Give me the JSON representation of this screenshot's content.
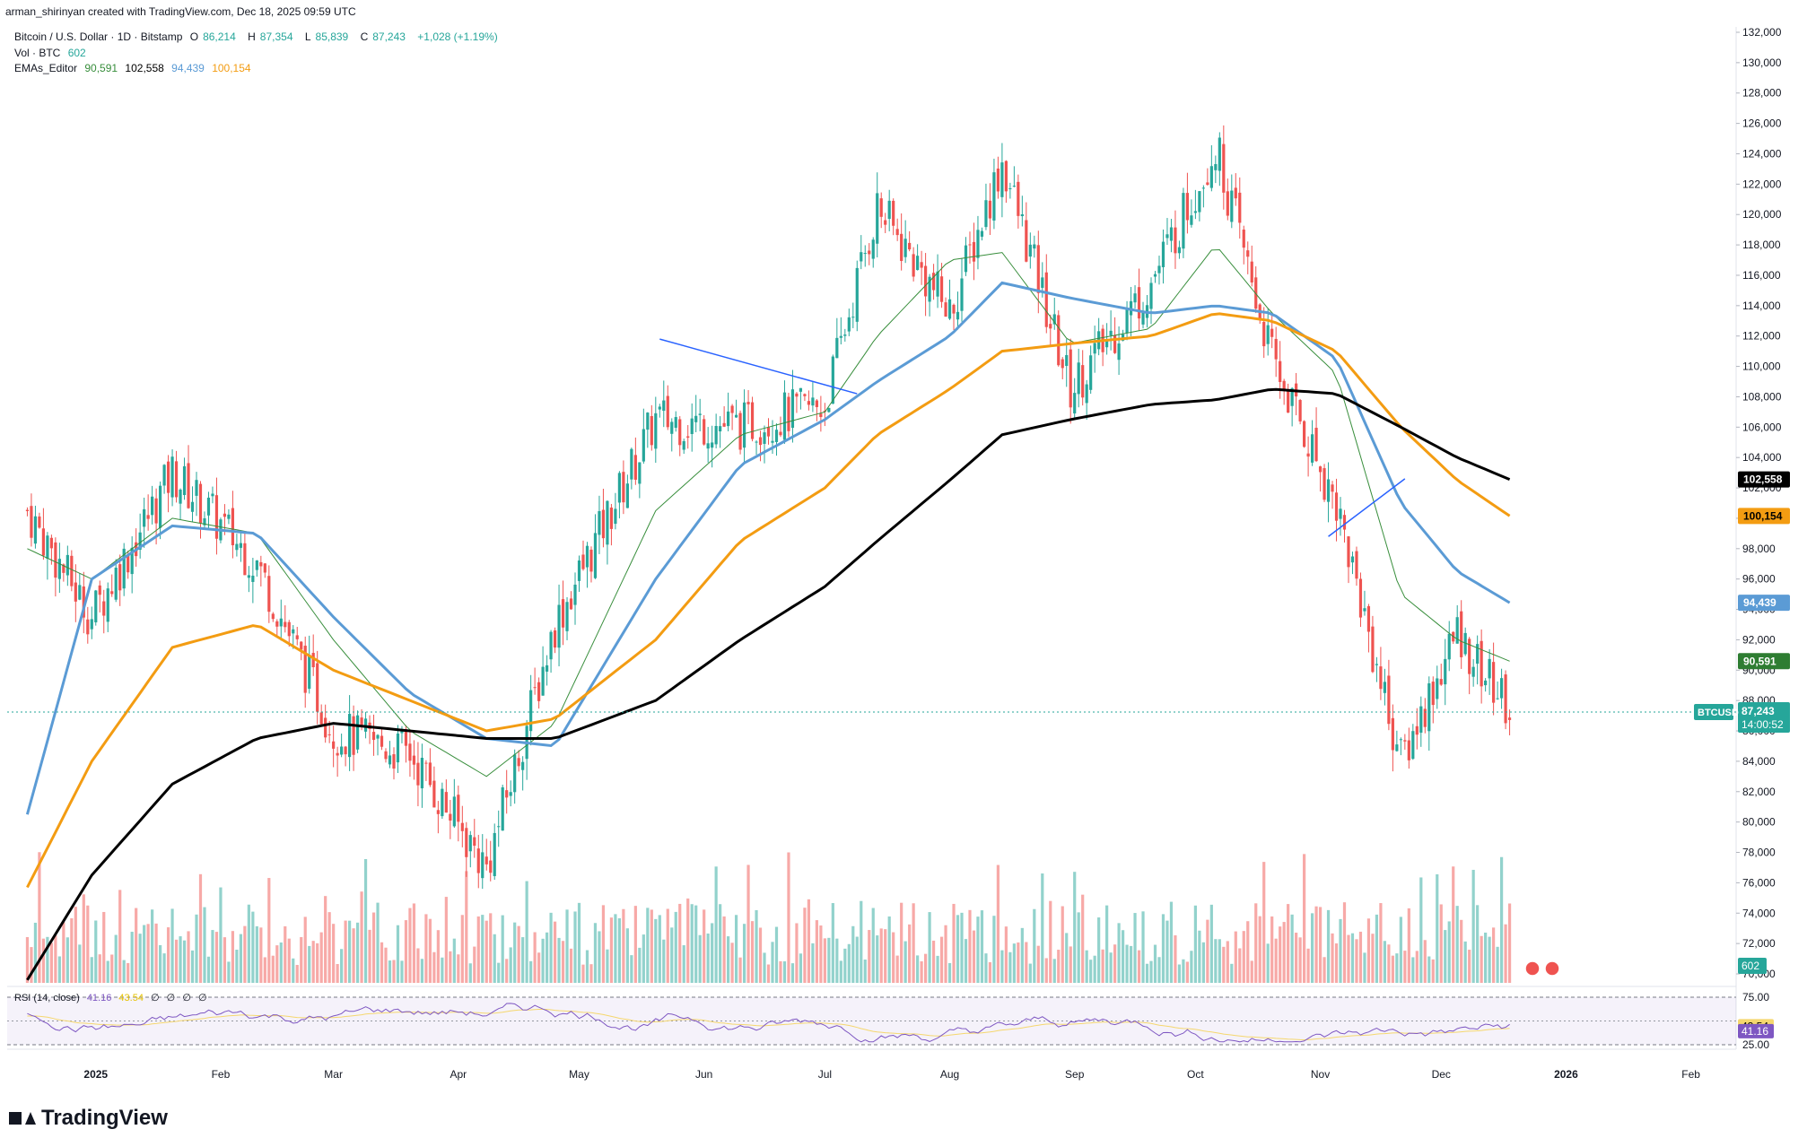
{
  "header": {
    "credit": "arman_shirinyan created with TradingView.com, Dec 18, 2025 09:59 UTC"
  },
  "legend": {
    "symbol": "Bitcoin / U.S. Dollar · 1D · Bitstamp",
    "open_label": "O",
    "open": "86,214",
    "high_label": "H",
    "high": "87,354",
    "low_label": "L",
    "low": "85,839",
    "close_label": "C",
    "close": "87,243",
    "change": "+1,028 (+1.19%)",
    "vol_label": "Vol · BTC",
    "vol": "602",
    "ema_label": "EMAs_Editor",
    "ema1": "90,591",
    "ema2": "102,558",
    "ema3": "94,439",
    "ema4": "100,154"
  },
  "rsi_legend": {
    "label": "RSI (14, close)",
    "value": "41.16",
    "ma": "43.54",
    "zeros": [
      "∅",
      "∅",
      "∅",
      "∅"
    ]
  },
  "price_badges": {
    "ema200": "102,558",
    "ema100": "100,154",
    "ema50": "94,439",
    "ema20": "90,591",
    "ticker": "BTCUSD",
    "last": "87,243",
    "countdown": "14:00:52",
    "volume": "602",
    "rsi_ma": "43.54",
    "rsi": "41.16"
  },
  "footer": {
    "brand": "TradingView"
  },
  "colors": {
    "up": "#26a69a",
    "down": "#ef5350",
    "ema20": "#388e3c",
    "ema50": "#5b9bd5",
    "ema100": "#f39c12",
    "ema200": "#000000",
    "rsi": "#7e57c2",
    "rsi_ma": "#f5d76e",
    "trendline": "#2962ff"
  },
  "chart_data": {
    "type": "line",
    "title": "Bitcoin / U.S. Dollar · 1D · Bitstamp",
    "xlabel": "",
    "ylabel": "",
    "ylim": [
      70000,
      132000
    ],
    "y_ticks": [
      "132,000",
      "130,000",
      "128,000",
      "126,000",
      "124,000",
      "122,000",
      "120,000",
      "118,000",
      "116,000",
      "114,000",
      "112,000",
      "110,000",
      "108,000",
      "106,000",
      "104,000",
      "102,000",
      "100,000",
      "98,000",
      "96,000",
      "94,000",
      "92,000",
      "90,000",
      "88,000",
      "86,000",
      "84,000",
      "82,000",
      "80,000",
      "78,000",
      "76,000",
      "74,000",
      "72,000",
      "70,000"
    ],
    "x_ticks": [
      "2025",
      "Feb",
      "Mar",
      "Apr",
      "May",
      "Jun",
      "Jul",
      "Aug",
      "Sep",
      "Oct",
      "Nov",
      "Dec",
      "2026",
      "Feb"
    ],
    "rsi_ticks": [
      "75.00",
      "25.00"
    ],
    "series": [
      {
        "name": "BTCUSD (approx. close)",
        "x": [
          "2024-12-15",
          "2024-12-31",
          "2025-01-20",
          "2025-02-10",
          "2025-03-01",
          "2025-03-20",
          "2025-04-08",
          "2025-04-25",
          "2025-05-20",
          "2025-06-10",
          "2025-07-01",
          "2025-07-14",
          "2025-08-01",
          "2025-08-14",
          "2025-08-31",
          "2025-09-20",
          "2025-10-06",
          "2025-10-20",
          "2025-11-05",
          "2025-11-21",
          "2025-12-05",
          "2025-12-18"
        ],
        "values": [
          100500,
          93500,
          103000,
          97000,
          86000,
          84500,
          77000,
          93000,
          106500,
          106000,
          107500,
          120500,
          113500,
          123500,
          108500,
          115500,
          124500,
          110500,
          101000,
          84000,
          92500,
          87243
        ]
      },
      {
        "name": "EMA 20",
        "values": [
          98000,
          96000,
          100000,
          99000,
          92000,
          86000,
          83000,
          86500,
          100500,
          105500,
          107000,
          112000,
          117000,
          117500,
          111500,
          112500,
          118000,
          113500,
          109500,
          95000,
          92000,
          90591
        ]
      },
      {
        "name": "EMA 50",
        "values": [
          80500,
          96000,
          99500,
          99000,
          93500,
          88500,
          85500,
          85000,
          96000,
          103500,
          106500,
          109000,
          112000,
          115500,
          114500,
          113500,
          114000,
          113500,
          110500,
          101000,
          96500,
          94439
        ]
      },
      {
        "name": "EMA 100",
        "values": [
          75700,
          84000,
          91500,
          93000,
          90000,
          88000,
          86000,
          86800,
          92000,
          98500,
          102000,
          105500,
          108500,
          111000,
          111500,
          112000,
          113500,
          113000,
          111000,
          106000,
          102500,
          100154
        ]
      },
      {
        "name": "EMA 200",
        "values": [
          69600,
          76500,
          82500,
          85500,
          86500,
          86000,
          85500,
          85500,
          88000,
          92000,
          95500,
          98500,
          102500,
          105500,
          106500,
          107500,
          107800,
          108500,
          108200,
          106000,
          104000,
          102558
        ]
      }
    ],
    "ema_labels": [
      "90,591",
      "102,558",
      "94,439",
      "100,154"
    ],
    "volume_last": 602,
    "rsi": {
      "value": 41.16,
      "ma": 43.54,
      "range": [
        25,
        75
      ]
    }
  }
}
